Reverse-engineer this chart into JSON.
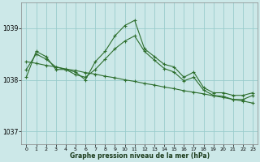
{
  "title": "Graphe pression niveau de la mer (hPa)",
  "bg_color": "#cce8e8",
  "grid_color": "#99cccc",
  "line_color": "#2d6e2d",
  "hours": [
    0,
    1,
    2,
    3,
    4,
    5,
    6,
    7,
    8,
    9,
    10,
    11,
    12,
    13,
    14,
    15,
    16,
    17,
    18,
    19,
    20,
    21,
    22,
    23
  ],
  "ylim": [
    1036.8,
    1039.5
  ],
  "yticks": [
    1037,
    1038,
    1039
  ],
  "xlim": [
    -0.5,
    23.5
  ],
  "xticks": [
    0,
    1,
    2,
    3,
    4,
    5,
    6,
    7,
    8,
    9,
    10,
    11,
    12,
    13,
    14,
    15,
    16,
    17,
    18,
    19,
    20,
    21,
    22,
    23
  ]
}
